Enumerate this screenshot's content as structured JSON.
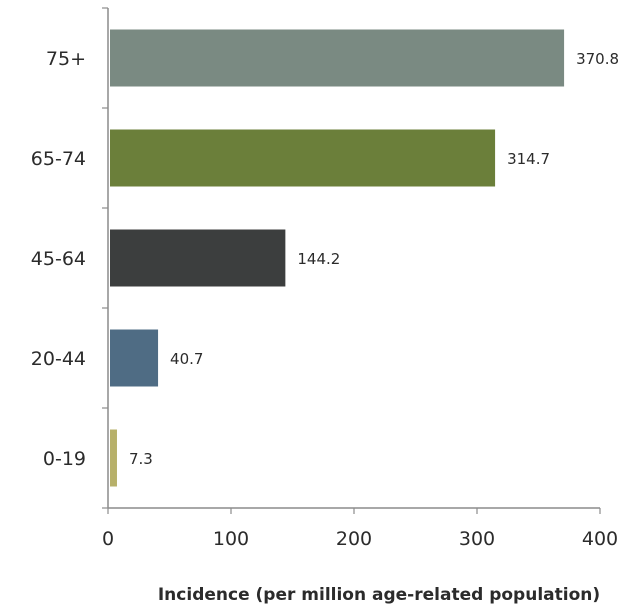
{
  "chart_data": {
    "type": "bar",
    "orientation": "horizontal",
    "categories": [
      "75+",
      "65-74",
      "45-64",
      "20-44",
      "0-19"
    ],
    "values": [
      370.8,
      314.7,
      144.2,
      40.7,
      7.3
    ],
    "data_labels": [
      "370.8",
      "314.7",
      "144.2",
      "40.7",
      "7.3"
    ],
    "bar_colors": [
      "#7a8a82",
      "#6b7f3a",
      "#3c3e3e",
      "#4f6c84",
      "#b7b06a"
    ],
    "xlabel": "Incidence (per million age-related population)",
    "ylabel": "",
    "title": "",
    "xlim": [
      0,
      400
    ],
    "x_ticks": [
      0,
      100,
      200,
      300,
      400
    ],
    "x_tick_labels": [
      "0",
      "100",
      "200",
      "300",
      "400"
    ],
    "grid": false,
    "legend": "none"
  }
}
